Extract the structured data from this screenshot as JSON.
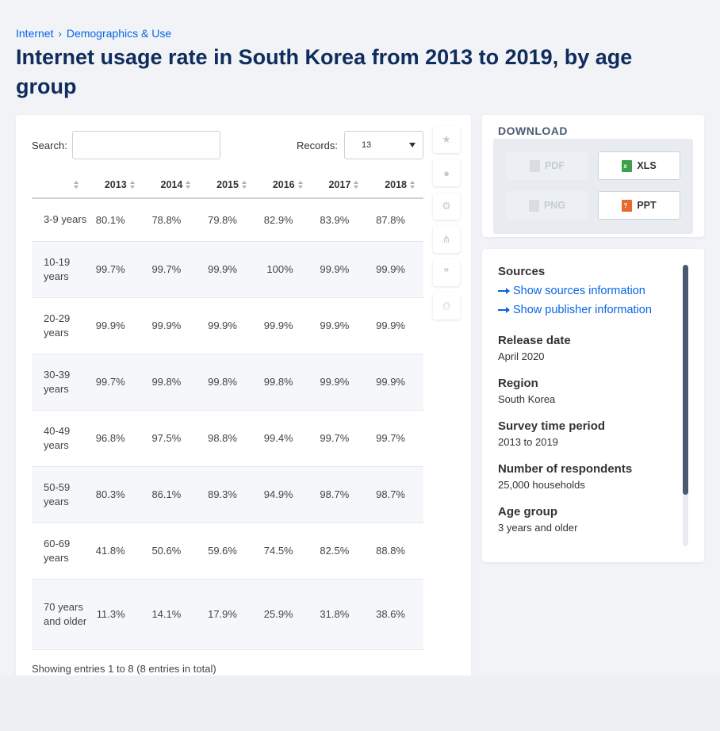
{
  "breadcrumb": {
    "items": [
      "Internet",
      "Demographics & Use"
    ],
    "separator": "›"
  },
  "page": {
    "title": "Internet usage rate in South Korea from 2013 to 2019, by age group"
  },
  "table_controls": {
    "search_label": "Search:",
    "search_placeholder": "",
    "records_label": "Records:",
    "records_value": "13"
  },
  "table": {
    "columns": [
      "",
      "2013",
      "2014",
      "2015",
      "2016",
      "2017",
      "2018"
    ],
    "rows": [
      {
        "label": "3-9 years",
        "values": [
          "80.1%",
          "78.8%",
          "79.8%",
          "82.9%",
          "83.9%",
          "87.8%"
        ]
      },
      {
        "label": "10-19 years",
        "values": [
          "99.7%",
          "99.7%",
          "99.9%",
          "100%",
          "99.9%",
          "99.9%"
        ]
      },
      {
        "label": "20-29 years",
        "values": [
          "99.9%",
          "99.9%",
          "99.9%",
          "99.9%",
          "99.9%",
          "99.9%"
        ]
      },
      {
        "label": "30-39 years",
        "values": [
          "99.7%",
          "99.8%",
          "99.8%",
          "99.8%",
          "99.9%",
          "99.9%"
        ]
      },
      {
        "label": "40-49 years",
        "values": [
          "96.8%",
          "97.5%",
          "98.8%",
          "99.4%",
          "99.7%",
          "99.7%"
        ]
      },
      {
        "label": "50-59 years",
        "values": [
          "80.3%",
          "86.1%",
          "89.3%",
          "94.9%",
          "98.7%",
          "98.7%"
        ]
      },
      {
        "label": "60-69 years",
        "values": [
          "41.8%",
          "50.6%",
          "59.6%",
          "74.5%",
          "82.5%",
          "88.8%"
        ]
      },
      {
        "label": "70 years and older",
        "values": [
          "11.3%",
          "14.1%",
          "17.9%",
          "25.9%",
          "31.8%",
          "38.6%"
        ]
      }
    ],
    "footer": "Showing entries 1 to 8 (8 entries in total)"
  },
  "tools": [
    {
      "name": "star-icon",
      "glyph": "★"
    },
    {
      "name": "bell-icon",
      "glyph": "🔔"
    },
    {
      "name": "gear-icon",
      "glyph": "⚙"
    },
    {
      "name": "share-icon",
      "glyph": "⋔"
    },
    {
      "name": "quote-icon",
      "glyph": "❞"
    },
    {
      "name": "print-icon",
      "glyph": "⎙"
    }
  ],
  "download": {
    "title": "DOWNLOAD",
    "buttons": [
      {
        "label": "PDF",
        "enabled": false
      },
      {
        "label": "XLS",
        "enabled": true
      },
      {
        "label": "PNG",
        "enabled": false
      },
      {
        "label": "PPT",
        "enabled": true
      }
    ]
  },
  "info": {
    "sources_heading": "Sources",
    "show_sources": "Show sources information",
    "show_publisher": "Show publisher information",
    "release_date_label": "Release date",
    "release_date": "April 2020",
    "region_label": "Region",
    "region": "South Korea",
    "survey_period_label": "Survey time period",
    "survey_period": "2013 to 2019",
    "respondents_label": "Number of respondents",
    "respondents": "25,000 households",
    "age_group_label": "Age group",
    "age_group": "3 years and older"
  },
  "colors": {
    "title": "#0f2c5c",
    "link": "#0666e5",
    "background": "#f1f3f6"
  }
}
